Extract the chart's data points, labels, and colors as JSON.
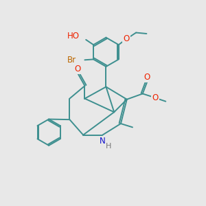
{
  "bg_color": "#e8e8e8",
  "bond_color": "#3d8f8f",
  "bond_width": 1.4,
  "atom_colors": {
    "O": "#ee2200",
    "N": "#1111cc",
    "Br": "#bb6600",
    "H_label": "#777777"
  },
  "font_size": 8.5,
  "fig_size": [
    3.0,
    3.0
  ],
  "dpi": 100
}
